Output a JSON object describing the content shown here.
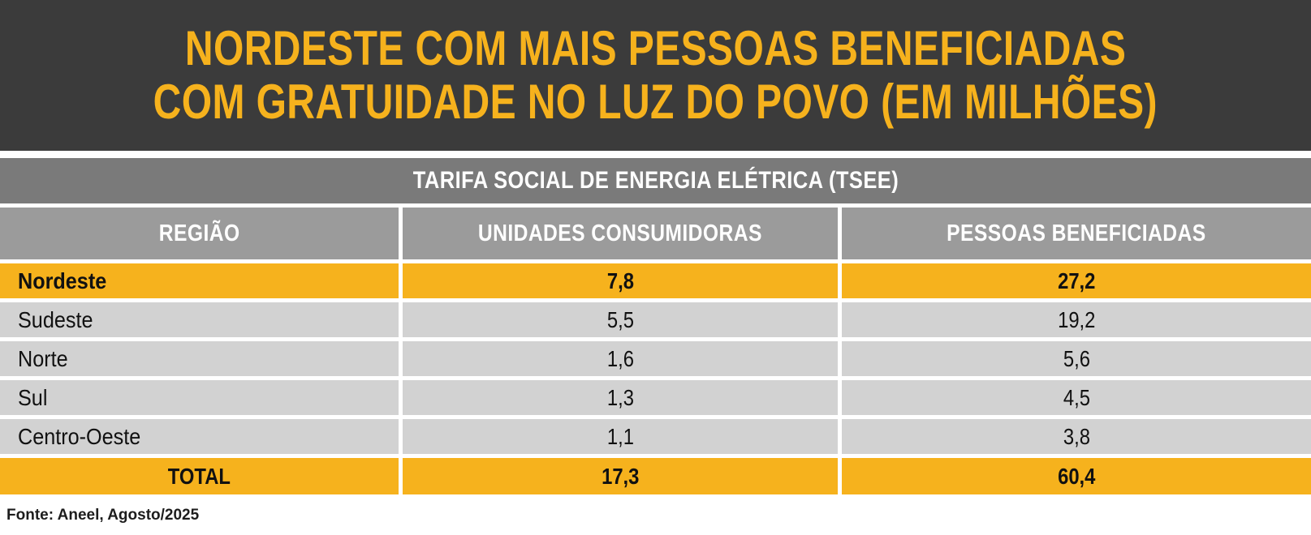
{
  "banner": {
    "title_line1": "NORDESTE COM MAIS PESSOAS BENEFICIADAS",
    "title_line2": "COM GRATUIDADE NO LUZ DO POVO (EM MILHÕES)"
  },
  "table": {
    "caption": "TARIFA SOCIAL DE ENERGIA ELÉTRICA (TSEE)",
    "columns": [
      "REGIÃO",
      "UNIDADES CONSUMIDORAS",
      "PESSOAS BENEFICIADAS"
    ],
    "rows": [
      {
        "region": "Nordeste",
        "unidades": "7,8",
        "pessoas": "27,2"
      },
      {
        "region": "Sudeste",
        "unidades": "5,5",
        "pessoas": "19,2"
      },
      {
        "region": "Norte",
        "unidades": "1,6",
        "pessoas": "5,6"
      },
      {
        "region": "Sul",
        "unidades": "1,3",
        "pessoas": "4,5"
      },
      {
        "region": "Centro-Oeste",
        "unidades": "1,1",
        "pessoas": "3,8"
      }
    ],
    "total": {
      "label": "TOTAL",
      "unidades": "17,3",
      "pessoas": "60,4"
    }
  },
  "footer": {
    "source": "Fonte: Aneel, Agosto/2025"
  },
  "colors": {
    "banner_bg": "#3B3B3B",
    "accent_yellow": "#F6B21D",
    "caption_bg": "#7A7A7A",
    "header_bg": "#9B9B9B",
    "row_bg": "#D2D2D2",
    "row_text": "#111111",
    "total_label_text": "#4E5258"
  },
  "chart_data": {
    "type": "table",
    "title": "NORDESTE COM MAIS PESSOAS BENEFICIADAS COM GRATUIDADE NO LUZ DO POVO (EM MILHÕES)",
    "subtitle": "TARIFA SOCIAL DE ENERGIA ELÉTRICA (TSEE)",
    "columns": [
      "REGIÃO",
      "UNIDADES CONSUMIDORAS",
      "PESSOAS BENEFICIADAS"
    ],
    "rows": [
      [
        "Nordeste",
        7.8,
        27.2
      ],
      [
        "Sudeste",
        5.5,
        19.2
      ],
      [
        "Norte",
        1.6,
        5.6
      ],
      [
        "Sul",
        1.3,
        4.5
      ],
      [
        "Centro-Oeste",
        1.1,
        3.8
      ]
    ],
    "total_row": [
      "TOTAL",
      17.3,
      60.4
    ],
    "highlighted_row": "Nordeste",
    "units": "milhões",
    "source": "Fonte: Aneel, Agosto/2025"
  }
}
